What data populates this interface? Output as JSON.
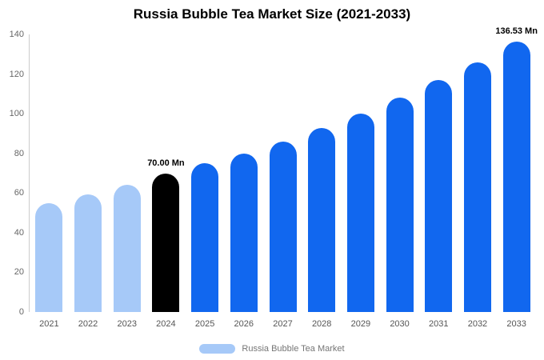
{
  "title": "Russia Bubble Tea Market Size (2021-2033)",
  "legend": {
    "label": "Russia Bubble Tea Market",
    "swatch_color": "#a6c9f8"
  },
  "chart_data": {
    "type": "bar",
    "title": "Russia Bubble Tea Market Size (2021-2033)",
    "xlabel": "",
    "ylabel": "",
    "categories": [
      "2021",
      "2022",
      "2023",
      "2024",
      "2025",
      "2026",
      "2027",
      "2028",
      "2029",
      "2030",
      "2031",
      "2032",
      "2033"
    ],
    "values": [
      55,
      59.5,
      64,
      70,
      75,
      80,
      86,
      93,
      100,
      108,
      117,
      126,
      136.53
    ],
    "unit": "Mn",
    "ylim": [
      0,
      140
    ],
    "yticks": [
      0,
      20,
      40,
      60,
      80,
      100,
      120,
      140
    ],
    "grid": false,
    "legend_position": "bottom",
    "bar_colors": [
      "#a6c9f8",
      "#a6c9f8",
      "#a6c9f8",
      "#000000",
      "#1167ef",
      "#1167ef",
      "#1167ef",
      "#1167ef",
      "#1167ef",
      "#1167ef",
      "#1167ef",
      "#1167ef",
      "#1167ef"
    ],
    "annotations": [
      {
        "category": "2024",
        "text": "70.00 Mn"
      },
      {
        "category": "2033",
        "text": "136.53 Mn"
      }
    ]
  }
}
